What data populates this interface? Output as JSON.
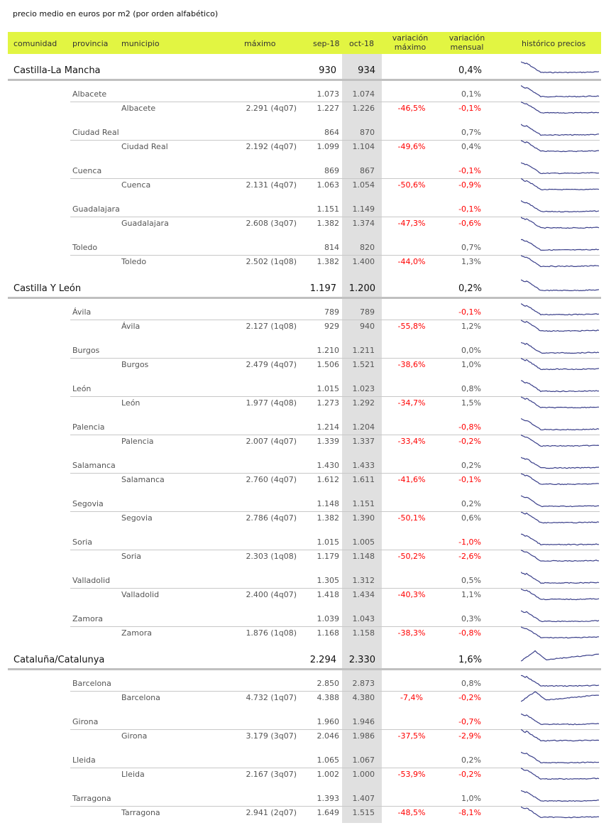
{
  "title": "precio medio en euros por m2 (por orden alfabético)",
  "headers": {
    "comunidad": "comunidad",
    "provincia": "provincia",
    "municipio": "municipio",
    "maximo": "máximo",
    "sep": "sep-18",
    "oct": "oct-18",
    "var_max": "variación\nmáximo",
    "var_mensual": "variación\nmensual",
    "historico": "histórico precios"
  },
  "colors": {
    "header_bg": "#e2f542",
    "negative": "#ff0000",
    "oct_column": "#e0e0e0",
    "sparkline": "#3a3f8a"
  },
  "comunidades": [
    {
      "name": "Castilla-La Mancha",
      "sep": "930",
      "oct": "934",
      "var_mensual": "0,4%",
      "provincias": [
        {
          "name": "Albacete",
          "sep": "1.073",
          "oct": "1.074",
          "var_mensual": "0,1%",
          "municipio": {
            "name": "Albacete",
            "maximo": "2.291 (4q07)",
            "sep": "1.227",
            "oct": "1.226",
            "var_max": "-46,5%",
            "var_mensual": "-0,1%"
          }
        },
        {
          "name": "Ciudad Real",
          "sep": "864",
          "oct": "870",
          "var_mensual": "0,7%",
          "municipio": {
            "name": "Ciudad Real",
            "maximo": "2.192 (4q07)",
            "sep": "1.099",
            "oct": "1.104",
            "var_max": "-49,6%",
            "var_mensual": "0,4%"
          }
        },
        {
          "name": "Cuenca",
          "sep": "869",
          "oct": "867",
          "var_mensual": "-0,1%",
          "municipio": {
            "name": "Cuenca",
            "maximo": "2.131 (4q07)",
            "sep": "1.063",
            "oct": "1.054",
            "var_max": "-50,6%",
            "var_mensual": "-0,9%"
          }
        },
        {
          "name": "Guadalajara",
          "sep": "1.151",
          "oct": "1.149",
          "var_mensual": "-0,1%",
          "municipio": {
            "name": "Guadalajara",
            "maximo": "2.608 (3q07)",
            "sep": "1.382",
            "oct": "1.374",
            "var_max": "-47,3%",
            "var_mensual": "-0,6%"
          }
        },
        {
          "name": "Toledo",
          "sep": "814",
          "oct": "820",
          "var_mensual": "0,7%",
          "municipio": {
            "name": "Toledo",
            "maximo": "2.502 (1q08)",
            "sep": "1.382",
            "oct": "1.400",
            "var_max": "-44,0%",
            "var_mensual": "1,3%"
          }
        }
      ]
    },
    {
      "name": "Castilla Y León",
      "sep": "1.197",
      "oct": "1.200",
      "var_mensual": "0,2%",
      "provincias": [
        {
          "name": "Ávila",
          "sep": "789",
          "oct": "789",
          "var_mensual": "-0,1%",
          "municipio": {
            "name": "Ávila",
            "maximo": "2.127 (1q08)",
            "sep": "929",
            "oct": "940",
            "var_max": "-55,8%",
            "var_mensual": "1,2%"
          }
        },
        {
          "name": "Burgos",
          "sep": "1.210",
          "oct": "1.211",
          "var_mensual": "0,0%",
          "municipio": {
            "name": "Burgos",
            "maximo": "2.479 (4q07)",
            "sep": "1.506",
            "oct": "1.521",
            "var_max": "-38,6%",
            "var_mensual": "1,0%"
          }
        },
        {
          "name": "León",
          "sep": "1.015",
          "oct": "1.023",
          "var_mensual": "0,8%",
          "municipio": {
            "name": "León",
            "maximo": "1.977 (4q08)",
            "sep": "1.273",
            "oct": "1.292",
            "var_max": "-34,7%",
            "var_mensual": "1,5%"
          }
        },
        {
          "name": "Palencia",
          "sep": "1.214",
          "oct": "1.204",
          "var_mensual": "-0,8%",
          "municipio": {
            "name": "Palencia",
            "maximo": "2.007 (4q07)",
            "sep": "1.339",
            "oct": "1.337",
            "var_max": "-33,4%",
            "var_mensual": "-0,2%"
          }
        },
        {
          "name": "Salamanca",
          "sep": "1.430",
          "oct": "1.433",
          "var_mensual": "0,2%",
          "municipio": {
            "name": "Salamanca",
            "maximo": "2.760 (4q07)",
            "sep": "1.612",
            "oct": "1.611",
            "var_max": "-41,6%",
            "var_mensual": "-0,1%"
          }
        },
        {
          "name": "Segovia",
          "sep": "1.148",
          "oct": "1.151",
          "var_mensual": "0,2%",
          "municipio": {
            "name": "Segovia",
            "maximo": "2.786 (4q07)",
            "sep": "1.382",
            "oct": "1.390",
            "var_max": "-50,1%",
            "var_mensual": "0,6%"
          }
        },
        {
          "name": "Soria",
          "sep": "1.015",
          "oct": "1.005",
          "var_mensual": "-1,0%",
          "municipio": {
            "name": "Soria",
            "maximo": "2.303 (1q08)",
            "sep": "1.179",
            "oct": "1.148",
            "var_max": "-50,2%",
            "var_mensual": "-2,6%"
          }
        },
        {
          "name": "Valladolid",
          "sep": "1.305",
          "oct": "1.312",
          "var_mensual": "0,5%",
          "municipio": {
            "name": "Valladolid",
            "maximo": "2.400 (4q07)",
            "sep": "1.418",
            "oct": "1.434",
            "var_max": "-40,3%",
            "var_mensual": "1,1%"
          }
        },
        {
          "name": "Zamora",
          "sep": "1.039",
          "oct": "1.043",
          "var_mensual": "0,3%",
          "municipio": {
            "name": "Zamora",
            "maximo": "1.876 (1q08)",
            "sep": "1.168",
            "oct": "1.158",
            "var_max": "-38,3%",
            "var_mensual": "-0,8%"
          }
        }
      ]
    },
    {
      "name": "Cataluña/Catalunya",
      "sep": "2.294",
      "oct": "2.330",
      "var_mensual": "1,6%",
      "provincias": [
        {
          "name": "Barcelona",
          "sep": "2.850",
          "oct": "2.873",
          "var_mensual": "0,8%",
          "municipio": {
            "name": "Barcelona",
            "maximo": "4.732 (1q07)",
            "sep": "4.388",
            "oct": "4.380",
            "var_max": "-7,4%",
            "var_mensual": "-0,2%"
          }
        },
        {
          "name": "Girona",
          "sep": "1.960",
          "oct": "1.946",
          "var_mensual": "-0,7%",
          "municipio": {
            "name": "Girona",
            "maximo": "3.179 (3q07)",
            "sep": "2.046",
            "oct": "1.986",
            "var_max": "-37,5%",
            "var_mensual": "-2,9%"
          }
        },
        {
          "name": "Lleida",
          "sep": "1.065",
          "oct": "1.067",
          "var_mensual": "0,2%",
          "municipio": {
            "name": "Lleida",
            "maximo": "2.167 (3q07)",
            "sep": "1.002",
            "oct": "1.000",
            "var_max": "-53,9%",
            "var_mensual": "-0,2%"
          }
        },
        {
          "name": "Tarragona",
          "sep": "1.393",
          "oct": "1.407",
          "var_mensual": "1,0%",
          "municipio": {
            "name": "Tarragona",
            "maximo": "2.941 (2q07)",
            "sep": "1.649",
            "oct": "1.515",
            "var_max": "-48,5%",
            "var_mensual": "-8,1%"
          }
        }
      ]
    }
  ]
}
